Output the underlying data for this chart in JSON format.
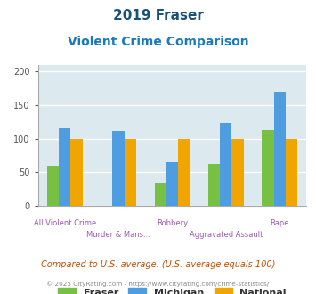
{
  "title_line1": "2019 Fraser",
  "title_line2": "Violent Crime Comparison",
  "categories": [
    "All Violent Crime",
    "Murder & Mans...",
    "Robbery",
    "Aggravated Assault",
    "Rape"
  ],
  "fraser": [
    60,
    0,
    35,
    62,
    113
  ],
  "michigan": [
    115,
    112,
    65,
    123,
    170
  ],
  "national": [
    100,
    100,
    100,
    100,
    100
  ],
  "fraser_color": "#76c043",
  "michigan_color": "#4d9de0",
  "national_color": "#f0a500",
  "bg_color": "#dce9ee",
  "ylim": [
    0,
    210
  ],
  "yticks": [
    0,
    50,
    100,
    150,
    200
  ],
  "bar_width": 0.22,
  "footnote1": "Compared to U.S. average. (U.S. average equals 100)",
  "footnote2": "© 2025 CityRating.com - https://www.cityrating.com/crime-statistics/",
  "title_color": "#1a5276",
  "subtitle_color": "#1a7abf",
  "footnote1_color": "#c05000",
  "footnote2_color": "#888888",
  "axis_label_color": "#9b59b6",
  "grid_color": "#ffffff"
}
